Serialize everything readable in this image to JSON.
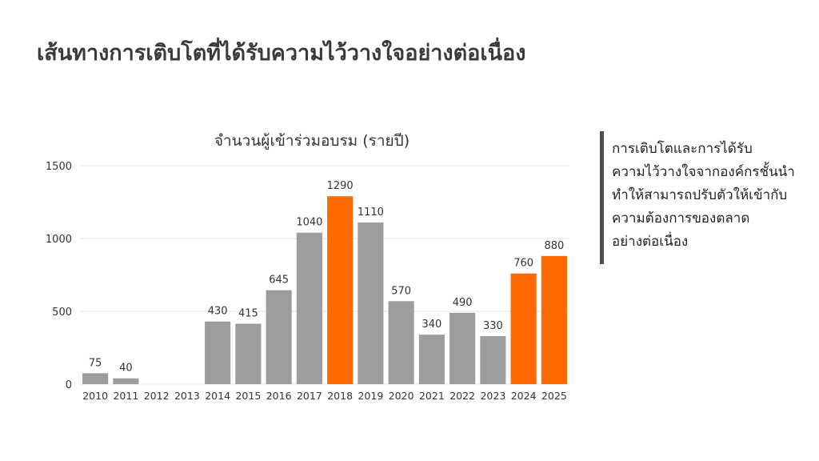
{
  "page": {
    "title": "เส้นทางการเติบโตที่ได้รับความไว้วางใจอย่างต่อเนื่อง"
  },
  "side_note": {
    "lines": [
      "การเติบโตและการได้รับ",
      "ความไว้วางใจจากองค์กรชั้นนำ",
      "ทำให้สามารถปรับตัวให้เข้ากับ",
      "ความต้องการของตลาด",
      "อย่างต่อเนื่อง"
    ]
  },
  "chart_data": {
    "type": "bar",
    "title": "จำนวนผู้เข้าร่วมอบรม (รายปี)",
    "xlabel": "",
    "ylabel": "",
    "categories": [
      "2010",
      "2011",
      "2012",
      "2013",
      "2014",
      "2015",
      "2016",
      "2017",
      "2018",
      "2019",
      "2020",
      "2021",
      "2022",
      "2023",
      "2024",
      "2025"
    ],
    "values": [
      75,
      40,
      0,
      0,
      430,
      415,
      645,
      1040,
      1290,
      1110,
      570,
      340,
      490,
      330,
      760,
      880
    ],
    "data_labels": [
      "75",
      "40",
      "",
      "",
      "430",
      "415",
      "645",
      "1040",
      "1290",
      "1110",
      "570",
      "340",
      "490",
      "330",
      "760",
      "880"
    ],
    "highlighted": [
      false,
      false,
      false,
      false,
      false,
      false,
      false,
      false,
      true,
      false,
      false,
      false,
      false,
      false,
      true,
      true
    ],
    "ylim": [
      0,
      1500
    ],
    "yticks": [
      0,
      500,
      1000,
      1500
    ],
    "grid": true,
    "legend": "none",
    "colors": {
      "bar": "#9d9d9d",
      "highlight": "#ff6a00",
      "grid": "#e6e6e6",
      "text": "#333333"
    }
  }
}
